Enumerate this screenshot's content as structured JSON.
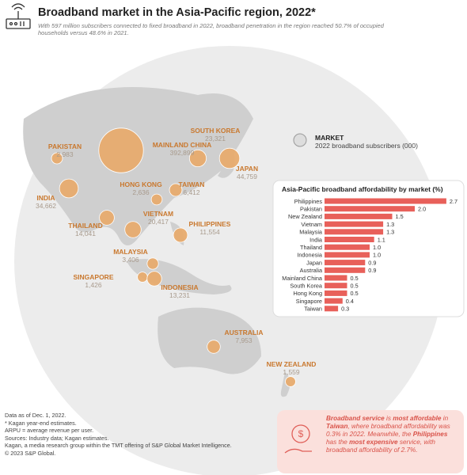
{
  "header": {
    "title": "Broadband market in the Asia-Pacific region, 2022*",
    "subtitle": "With 597 million subscribers connected to fixed broadband in 2022, broadband penetration in the region reached 50.7% of occupied households versus 48.6% in 2021."
  },
  "map": {
    "legend_title": "MARKET",
    "legend_subtitle": "2022 broadband subscribers (000)",
    "markets": [
      "PAKISTAN",
      "MAINLAND CHINA",
      "SOUTH KOREA",
      "JAPAN",
      "INDIA",
      "HONG KONG",
      "TAIWAN",
      "THAILAND",
      "VIETNAM",
      "PHILIPPINES",
      "MALAYSIA",
      "SINGAPORE",
      "INDONESIA",
      "AUSTRALIA",
      "NEW ZEALAND"
    ],
    "subscribers": [
      2983,
      392899,
      23321,
      44759,
      34662,
      2636,
      6412,
      14041,
      20417,
      11554,
      3406,
      1426,
      13231,
      7953,
      1559
    ],
    "subscriber_labels": [
      "2,983",
      "392,899",
      "23,321",
      "44,759",
      "34,662",
      "2,636",
      "6,412",
      "14,041",
      "20,417",
      "11,554",
      "3,406",
      "1,426",
      "13,231",
      "7,953",
      "1,559"
    ],
    "color": "#e8a868"
  },
  "chart_data": {
    "type": "hbar",
    "title": "Asia-Pacific broadband affordability by market (%)",
    "categories": [
      "Philippines",
      "Pakistan",
      "New Zealand",
      "Vietnam",
      "Malaysia",
      "India",
      "Thailand",
      "Indonesia",
      "Japan",
      "Australia",
      "Mainland China",
      "South Korea",
      "Hong Kong",
      "Singapore",
      "Taiwan"
    ],
    "values": [
      2.7,
      2.0,
      1.5,
      1.3,
      1.3,
      1.1,
      1.0,
      1.0,
      0.9,
      0.9,
      0.5,
      0.5,
      0.5,
      0.4,
      0.3
    ],
    "value_labels": [
      "2.7",
      "2.0",
      "1.5",
      "1.3",
      "1.3",
      "1.1",
      "1.0",
      "1.0",
      "0.9",
      "0.9",
      "0.5",
      "0.5",
      "0.5",
      "0.4",
      "0.3"
    ],
    "color": "#e8605a"
  },
  "notes": [
    "Data as of Dec. 1, 2022.",
    "* Kagan year-end estimates.",
    "ARPU = average revenue per user.",
    "Sources: Industry data; Kagan estimates.",
    "Kagan, a media research group within the TMT offering of S&P Global Market Intelligence.",
    "© 2023 S&P Global."
  ],
  "callout": {
    "segments": [
      "Broadband service",
      " is ",
      "most affordable",
      " in ",
      "Taiwan",
      ", where broadband affordability was 0.3% in 2022. Meanwhile, the ",
      "Philippines",
      " has the ",
      "most expensive",
      " service, with broadband affordability of 2.7%."
    ],
    "bold": [
      true,
      false,
      true,
      false,
      true,
      false,
      true,
      false,
      true,
      false
    ]
  }
}
